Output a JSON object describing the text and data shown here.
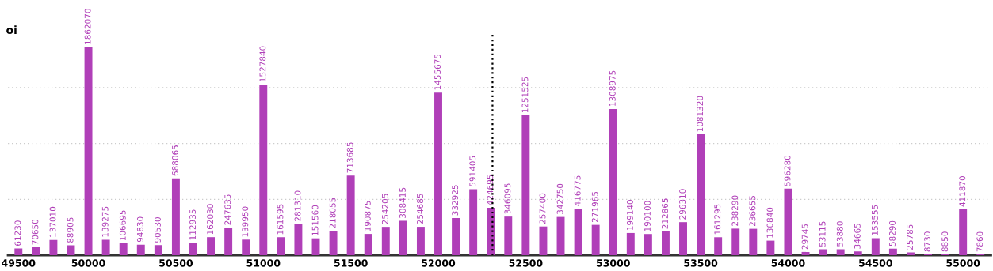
{
  "chart_data": {
    "type": "bar",
    "ylabel": "oi",
    "categories": [
      "49500",
      null,
      null,
      null,
      "50000",
      null,
      null,
      null,
      null,
      "50500",
      null,
      null,
      null,
      null,
      "51000",
      null,
      null,
      null,
      null,
      "51500",
      null,
      null,
      null,
      null,
      "52000",
      null,
      null,
      null,
      null,
      "52500",
      null,
      null,
      null,
      null,
      "53000",
      null,
      null,
      null,
      null,
      "53500",
      null,
      null,
      null,
      null,
      "54000",
      null,
      null,
      null,
      null,
      "54500",
      null,
      null,
      null,
      null,
      "55000",
      null
    ],
    "series": [
      {
        "color": "#b03fb8",
        "values": [
          61230,
          70650,
          137010,
          88905,
          1862070,
          139275,
          106695,
          94830,
          90530,
          688065,
          112935,
          162030,
          247635,
          139950,
          1527840,
          161595,
          281310,
          151560,
          218055,
          713685,
          190875,
          254205,
          308415,
          254685,
          1455675,
          332925,
          591405,
          424695,
          346095,
          1251525,
          257400,
          342750,
          416775,
          271965,
          1308975,
          199140,
          190100,
          212865,
          296310,
          1081320,
          161295,
          238290,
          236655,
          130840,
          596280,
          29745,
          53115,
          53880,
          34665,
          153555,
          58290,
          25785,
          8730,
          8850,
          411870,
          7860
        ]
      }
    ],
    "ylim": [
      0,
      2000000
    ],
    "yticks": [
      {
        "value": 500000,
        "label": null
      },
      {
        "value": 1000000,
        "label": null
      },
      {
        "value": 1500000,
        "label": null
      },
      {
        "value": 2000000,
        "label": null
      }
    ],
    "tick_labels": "x",
    "grid": "y",
    "data_labels": true,
    "legend": false
  }
}
